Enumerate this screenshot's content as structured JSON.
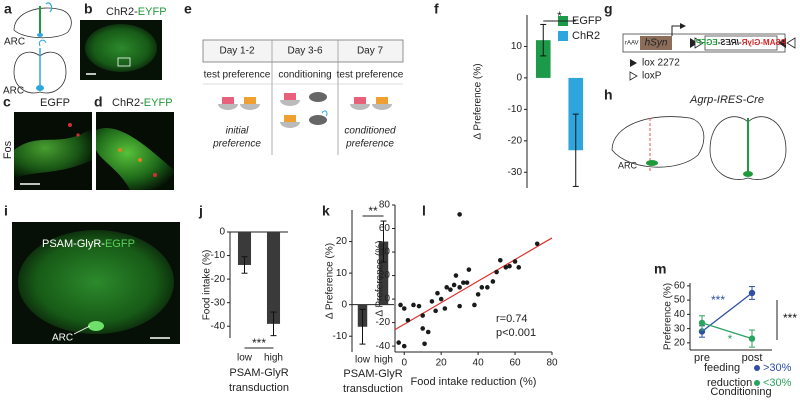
{
  "panel_labels": [
    "a",
    "b",
    "c",
    "d",
    "e",
    "f",
    "g",
    "h",
    "i",
    "j",
    "k",
    "l",
    "m"
  ],
  "panel_a": {
    "labels": [
      "ARC",
      "ARC"
    ]
  },
  "panel_b": {
    "title": [
      "ChR2-",
      "EYFP"
    ]
  },
  "panel_c": {
    "title": "EGFP",
    "side": "Fos"
  },
  "panel_d": {
    "title": [
      "ChR2-",
      "EYFP"
    ]
  },
  "panel_e": {
    "days": [
      "Day 1-2",
      "Day 3-6",
      "Day 7"
    ],
    "phases": [
      "test preference",
      "conditioning",
      "test preference"
    ],
    "outcomes": [
      [
        "initial",
        "preference"
      ],
      [
        "conditioned",
        "preference"
      ]
    ]
  },
  "panel_g": {
    "construct": [
      "rAAV",
      "hSyn",
      "PSAM-GlyR",
      "-IRES-",
      "EGFP"
    ],
    "legend": [
      "lox 2272",
      "loxP"
    ]
  },
  "panel_h": {
    "title": "Agrp-IRES-Cre",
    "label": "ARC"
  },
  "panel_i": {
    "title": [
      "PSAM-GlyR-",
      "EGFP"
    ],
    "label": "ARC"
  },
  "chart_data": [
    {
      "type": "bar",
      "ylabel": "Δ Preference (%)",
      "ylim": [
        -35,
        20
      ],
      "yticks": [
        -30,
        -20,
        -10,
        0,
        10
      ],
      "series": [
        {
          "name": "EGFP",
          "color": "#1c9a4a",
          "values": [
            12
          ],
          "errors": [
            5
          ]
        },
        {
          "name": "ChR2",
          "color": "#2ea6dd",
          "values": [
            -23
          ],
          "errors": [
            11.5
          ]
        }
      ],
      "annotations": [
        "*"
      ]
    },
    {
      "type": "bar",
      "ylabel": "Food intake (%)",
      "categories": [
        "low",
        "high"
      ],
      "values": [
        -14,
        -39
      ],
      "errors": [
        3.5,
        5
      ],
      "color": "#3a3a3a",
      "ylim": [
        -45,
        0
      ],
      "yticks": [
        -40,
        -30,
        -20,
        -10,
        0
      ],
      "xlabel": [
        "PSAM-GlyR",
        "transduction"
      ],
      "annotations": [
        "***"
      ]
    },
    {
      "type": "bar",
      "ylabel": "Δ Preference (%)",
      "categories": [
        "low",
        "high"
      ],
      "values": [
        -7,
        20
      ],
      "errors": [
        5.5,
        6.5
      ],
      "color": "#3a3a3a",
      "ylim": [
        -15,
        30
      ],
      "yticks": [
        -10,
        0,
        10,
        20
      ],
      "xlabel": [
        "PSAM-GlyR",
        "transduction"
      ],
      "annotations": [
        "**"
      ]
    },
    {
      "type": "scatter",
      "ylabel": "Δ Preference (%)",
      "xlabel": "Food intake reduction (%)",
      "x": [
        -2,
        0,
        -3,
        0,
        2,
        5,
        8,
        10,
        10,
        11,
        13,
        15,
        17,
        18,
        20,
        22,
        23,
        25,
        27,
        28,
        30,
        30,
        32,
        34,
        35,
        38,
        40,
        42,
        45,
        48,
        50,
        52,
        55,
        57,
        60,
        62,
        72,
        30
      ],
      "y": [
        -5,
        -8,
        -37,
        -40,
        -18,
        -5,
        -6,
        -14,
        -25,
        -38,
        -28,
        -2,
        -10,
        5,
        0,
        -8,
        10,
        8,
        12,
        20,
        72,
        10,
        14,
        14,
        25,
        -5,
        4,
        10,
        10,
        15,
        23,
        33,
        27,
        28,
        32,
        27,
        47,
        -6
      ],
      "color": "#1a1a1a",
      "xlim": [
        -5,
        80
      ],
      "xticks": [
        0,
        20,
        40,
        60,
        80
      ],
      "ylim": [
        -45,
        80
      ],
      "yticks": [
        -40,
        -20,
        0,
        20,
        40,
        60,
        80
      ],
      "trend_line": {
        "x": [
          -5,
          80
        ],
        "y": [
          -26,
          52
        ],
        "color": "#e0302a"
      },
      "annotations": [
        "r=0.74",
        "p<0.001"
      ]
    },
    {
      "type": "line",
      "ylabel": "Preference (%)",
      "xlabel": "Conditioning",
      "categories": [
        "pre",
        "post"
      ],
      "series": [
        {
          "name": ">30%",
          "color": "#2f4fa3",
          "values": [
            28,
            55
          ],
          "errors": [
            4,
            4.5
          ]
        },
        {
          "name": "<30%",
          "color": "#2ca25f",
          "values": [
            34,
            23
          ],
          "errors": [
            5,
            6
          ]
        }
      ],
      "legend_title": [
        "feeding",
        "reduction"
      ],
      "ylim": [
        15,
        62
      ],
      "yticks": [
        20,
        30,
        40,
        50,
        60
      ],
      "annotations": [
        "***",
        "*",
        "***"
      ]
    }
  ]
}
